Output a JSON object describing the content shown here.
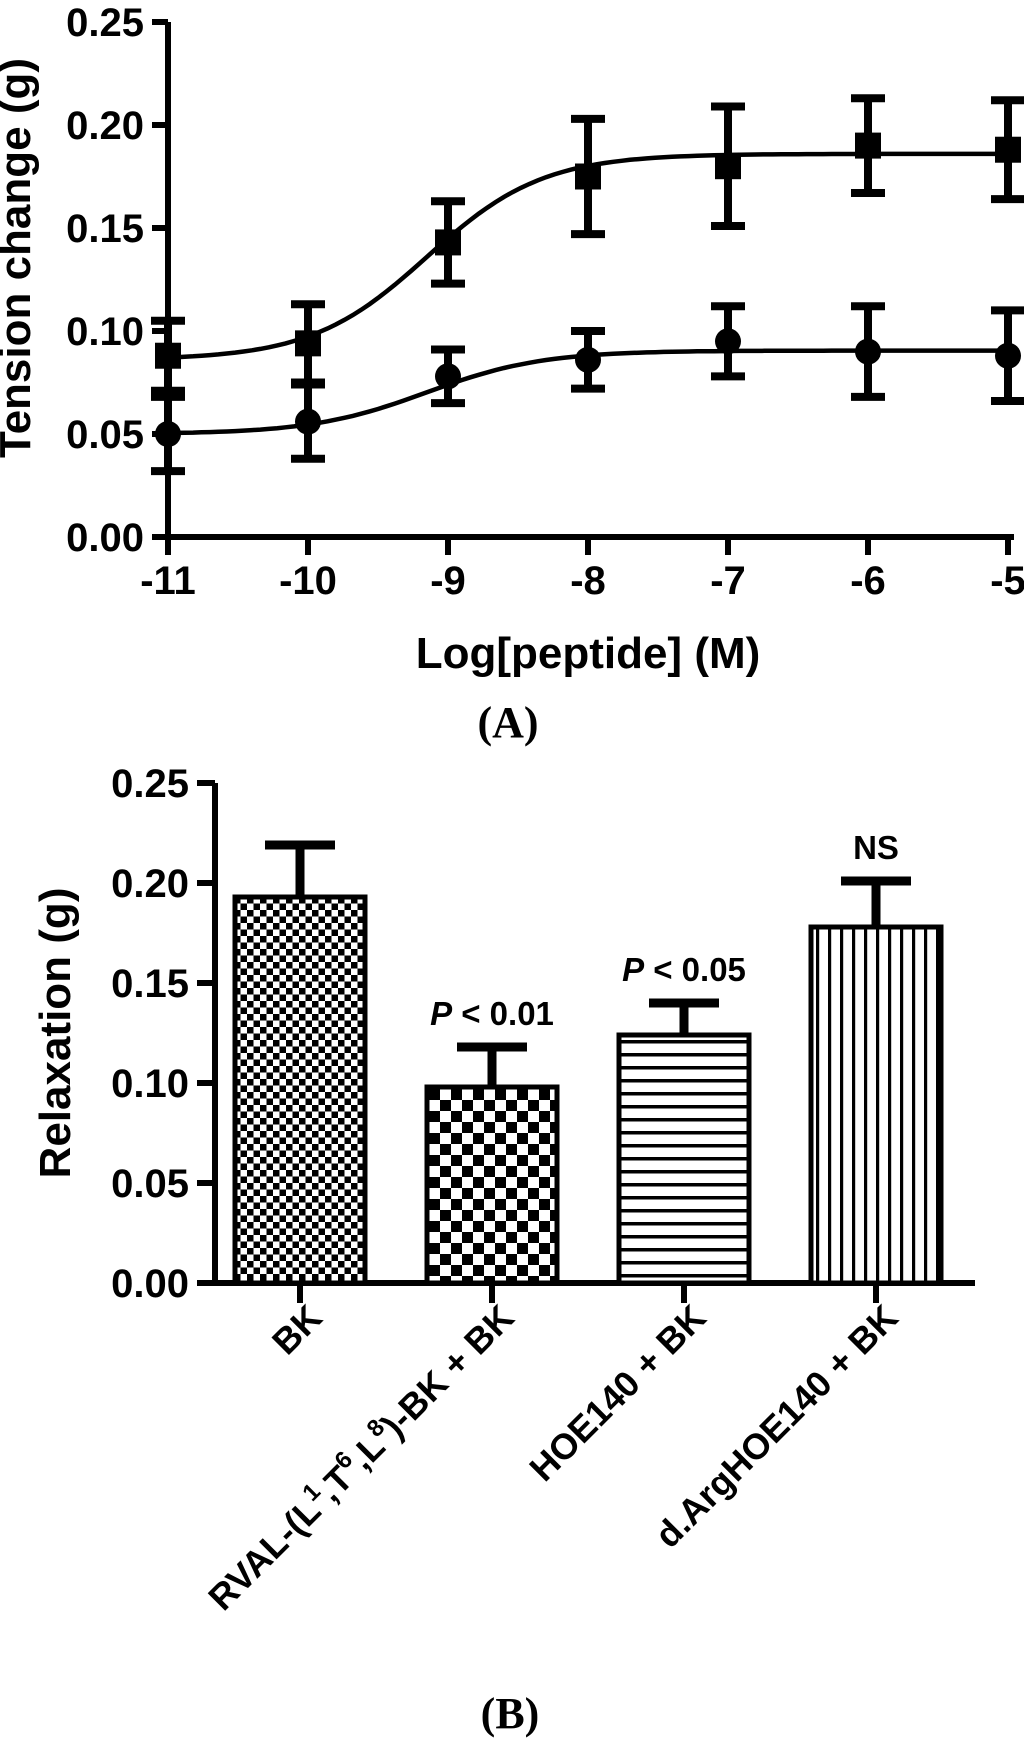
{
  "figure": {
    "background": "#ffffff",
    "foreground": "#000000"
  },
  "chart_data": [
    {
      "id": "panel-a",
      "type": "line",
      "panel_label": "(A)",
      "xlabel": "Log[peptide] (M)",
      "ylabel": "Tension change (g)",
      "xlim": [
        -11,
        -5
      ],
      "ylim": [
        0,
        0.25
      ],
      "xticks": [
        -11,
        -10,
        -9,
        -8,
        -7,
        -6,
        -5
      ],
      "yticks": [
        0,
        0.05,
        0.1,
        0.15,
        0.2,
        0.25
      ],
      "grid": false,
      "legend": "none",
      "x": [
        -11,
        -10,
        -9,
        -8,
        -7,
        -6,
        -5
      ],
      "series": [
        {
          "name": "upper dose-response curve (filled squares)",
          "marker": "square",
          "values": [
            0.088,
            0.094,
            0.143,
            0.175,
            0.18,
            0.19,
            0.188
          ],
          "errors": [
            0.017,
            0.019,
            0.02,
            0.028,
            0.029,
            0.023,
            0.024
          ],
          "fit_sigmoid": {
            "bottom": 0.086,
            "top": 0.186,
            "logec50": -9.15,
            "hill": 1.05
          }
        },
        {
          "name": "lower dose-response curve (filled circles)",
          "marker": "circle",
          "values": [
            0.05,
            0.056,
            0.078,
            0.086,
            0.095,
            0.09,
            0.088
          ],
          "errors": [
            0.018,
            0.018,
            0.013,
            0.014,
            0.017,
            0.022,
            0.022
          ],
          "fit_sigmoid": {
            "bottom": 0.05,
            "top": 0.0905,
            "logec50": -9.15,
            "hill": 1.05
          }
        }
      ]
    },
    {
      "id": "panel-b",
      "type": "bar",
      "panel_label": "(B)",
      "xlabel": "",
      "ylabel": "Relaxation (g)",
      "ylim": [
        0,
        0.25
      ],
      "yticks": [
        0,
        0.05,
        0.1,
        0.15,
        0.2,
        0.25
      ],
      "grid": false,
      "categories": [
        {
          "label": "BK",
          "parts": [
            {
              "t": "BK"
            }
          ]
        },
        {
          "label": "RVAL-(L1,T6,L8)-BK + BK",
          "parts": [
            {
              "t": "RVAL-(L"
            },
            {
              "t": "1",
              "sup": true
            },
            {
              "t": ",T"
            },
            {
              "t": "6",
              "sup": true
            },
            {
              "t": ",L"
            },
            {
              "t": "8",
              "sup": true
            },
            {
              "t": ")-BK + BK"
            }
          ]
        },
        {
          "label": "HOE140 + BK",
          "parts": [
            {
              "t": "HOE140 + BK"
            }
          ]
        },
        {
          "label": "d.ArgHOE140 + BK",
          "parts": [
            {
              "t": "d.ArgHOE140 + BK"
            }
          ]
        }
      ],
      "values": [
        0.193,
        0.098,
        0.124,
        0.178
      ],
      "errors": [
        0.026,
        0.02,
        0.016,
        0.023
      ],
      "annotations": [
        "",
        "P < 0.01",
        "P < 0.05",
        "NS"
      ],
      "bar_patterns": [
        "checker-fine",
        "checker-coarse",
        "horizontal-lines",
        "vertical-lines"
      ]
    }
  ]
}
